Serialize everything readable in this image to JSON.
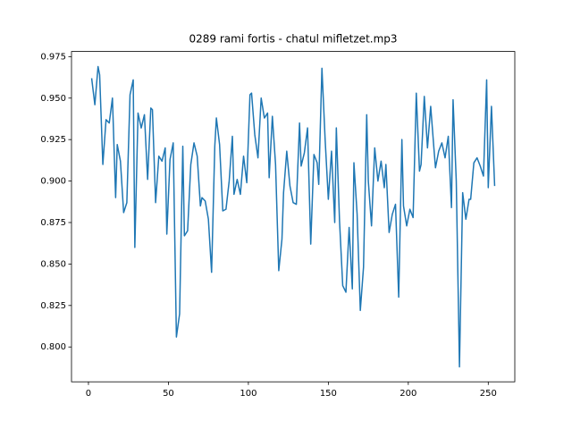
{
  "chart_data": {
    "type": "line",
    "title": "0289 rami fortis - chatul mifletzet.mp3",
    "x": [
      2,
      4,
      6,
      7,
      9,
      11,
      13,
      15,
      17,
      18,
      20,
      22,
      24,
      26,
      28,
      29,
      31,
      33,
      35,
      37,
      39,
      40,
      42,
      44,
      46,
      48,
      49,
      51,
      53,
      55,
      57,
      59,
      60,
      62,
      64,
      66,
      68,
      70,
      71,
      73,
      75,
      77,
      79,
      80,
      82,
      84,
      86,
      88,
      90,
      91,
      93,
      95,
      97,
      99,
      101,
      102,
      104,
      106,
      108,
      110,
      112,
      113,
      115,
      117,
      119,
      121,
      122,
      124,
      126,
      128,
      130,
      132,
      133,
      135,
      137,
      139,
      141,
      143,
      144,
      146,
      148,
      150,
      152,
      154,
      155,
      157,
      159,
      161,
      163,
      165,
      166,
      168,
      170,
      172,
      174,
      175,
      177,
      179,
      181,
      183,
      185,
      186,
      188,
      190,
      192,
      194,
      196,
      197,
      199,
      201,
      203,
      205,
      207,
      208,
      210,
      212,
      214,
      216,
      217,
      219,
      221,
      223,
      225,
      227,
      228,
      230,
      232,
      234,
      236,
      238,
      239,
      241,
      243,
      245,
      247,
      249,
      250,
      252,
      254
    ],
    "series": [
      {
        "color": "#1f77b4",
        "values": [
          0.962,
          0.946,
          0.969,
          0.964,
          0.91,
          0.937,
          0.935,
          0.95,
          0.89,
          0.922,
          0.912,
          0.881,
          0.887,
          0.952,
          0.961,
          0.86,
          0.941,
          0.932,
          0.94,
          0.901,
          0.944,
          0.943,
          0.887,
          0.915,
          0.912,
          0.92,
          0.868,
          0.913,
          0.923,
          0.806,
          0.82,
          0.921,
          0.867,
          0.87,
          0.91,
          0.923,
          0.915,
          0.885,
          0.89,
          0.888,
          0.877,
          0.845,
          0.921,
          0.938,
          0.922,
          0.882,
          0.883,
          0.9,
          0.927,
          0.892,
          0.901,
          0.892,
          0.915,
          0.899,
          0.952,
          0.953,
          0.928,
          0.914,
          0.95,
          0.938,
          0.941,
          0.902,
          0.939,
          0.91,
          0.846,
          0.865,
          0.893,
          0.918,
          0.897,
          0.887,
          0.886,
          0.935,
          0.909,
          0.917,
          0.932,
          0.862,
          0.916,
          0.911,
          0.898,
          0.968,
          0.925,
          0.889,
          0.918,
          0.875,
          0.932,
          0.876,
          0.837,
          0.833,
          0.872,
          0.835,
          0.911,
          0.88,
          0.822,
          0.848,
          0.94,
          0.9,
          0.873,
          0.92,
          0.9,
          0.912,
          0.896,
          0.91,
          0.869,
          0.88,
          0.886,
          0.83,
          0.925,
          0.885,
          0.873,
          0.883,
          0.878,
          0.953,
          0.906,
          0.91,
          0.951,
          0.92,
          0.945,
          0.92,
          0.908,
          0.918,
          0.923,
          0.914,
          0.927,
          0.884,
          0.949,
          0.9,
          0.788,
          0.893,
          0.877,
          0.889,
          0.889,
          0.911,
          0.914,
          0.909,
          0.903,
          0.961,
          0.896,
          0.945,
          0.897
        ]
      }
    ],
    "xlim": [
      -10.6,
      266.6
    ],
    "xticks": [
      0,
      50,
      100,
      150,
      200,
      250
    ],
    "ylim": [
      0.779,
      0.9781
    ],
    "yticks": [
      {
        "value": 0.8,
        "label": "0.800"
      },
      {
        "value": 0.825,
        "label": "0.825"
      },
      {
        "value": 0.85,
        "label": "0.850"
      },
      {
        "value": 0.875,
        "label": "0.875"
      },
      {
        "value": 0.9,
        "label": "0.900"
      },
      {
        "value": 0.925,
        "label": "0.925"
      },
      {
        "value": 0.95,
        "label": "0.950"
      },
      {
        "value": 0.975,
        "label": "0.975"
      }
    ],
    "grid": false
  }
}
